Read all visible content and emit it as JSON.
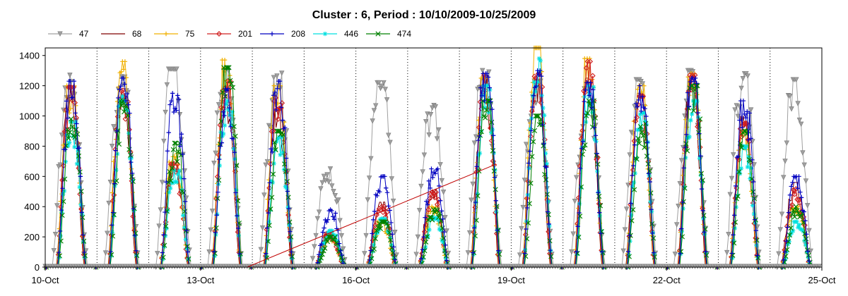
{
  "chart_data": {
    "type": "line",
    "title": "Cluster : 6, Period : 10/10/2009-10/25/2009",
    "xlabel": "",
    "ylabel": "",
    "x_ticks": [
      "10-Oct",
      "13-Oct",
      "16-Oct",
      "19-Oct",
      "22-Oct",
      "25-Oct"
    ],
    "y_ticks": [
      "0",
      "200",
      "400",
      "600",
      "800",
      "1000",
      "1200",
      "1400"
    ],
    "ylim": [
      0,
      1450
    ],
    "xlim_days": [
      10,
      25
    ],
    "grid": "vertical-dotted-daily",
    "legend_position": "top",
    "series": [
      {
        "name": "47",
        "color": "#a0a0a0",
        "marker": "triangle-down",
        "daily_peaks": [
          1270,
          1260,
          1310,
          1300,
          1330,
          650,
          1220,
          1070,
          1300,
          1230,
          1180,
          1240,
          1300,
          1280,
          1240
        ]
      },
      {
        "name": "68",
        "color": "#800000",
        "marker": "none",
        "daily_peaks": [
          1180,
          1150,
          700,
          1140,
          1050,
          230,
          430,
          520,
          1280,
          1240,
          1250,
          1150,
          1260,
          1000,
          560
        ]
      },
      {
        "name": "75",
        "color": "#f0b000",
        "marker": "plus",
        "daily_peaks": [
          1200,
          1360,
          750,
          1370,
          1200,
          200,
          300,
          400,
          1250,
          1450,
          1380,
          1200,
          1280,
          900,
          420
        ]
      },
      {
        "name": "201",
        "color": "#d02020",
        "marker": "diamond",
        "daily_peaks": [
          1190,
          1170,
          680,
          1240,
          1120,
          220,
          400,
          500,
          1270,
          1280,
          1360,
          1130,
          1270,
          950,
          520
        ]
      },
      {
        "name": "208",
        "color": "#0000c0",
        "marker": "plus",
        "daily_peaks": [
          1230,
          1250,
          1150,
          1180,
          1230,
          380,
          600,
          650,
          1280,
          1300,
          1220,
          1200,
          1250,
          1100,
          600
        ]
      },
      {
        "name": "446",
        "color": "#00e0e0",
        "marker": "star",
        "daily_peaks": [
          960,
          1130,
          640,
          1100,
          860,
          240,
          320,
          330,
          1200,
          1380,
          1200,
          1020,
          1100,
          800,
          300
        ]
      },
      {
        "name": "474",
        "color": "#008000",
        "marker": "x",
        "daily_peaks": [
          980,
          1100,
          820,
          1320,
          900,
          200,
          300,
          380,
          1100,
          1000,
          1100,
          950,
          1200,
          900,
          400
        ]
      }
    ],
    "annotations": [
      {
        "type": "line",
        "color": "#c00000",
        "from": {
          "x_day": 13.9,
          "y": 0
        },
        "to": {
          "x_day": 18.7,
          "y": 680
        }
      }
    ]
  }
}
